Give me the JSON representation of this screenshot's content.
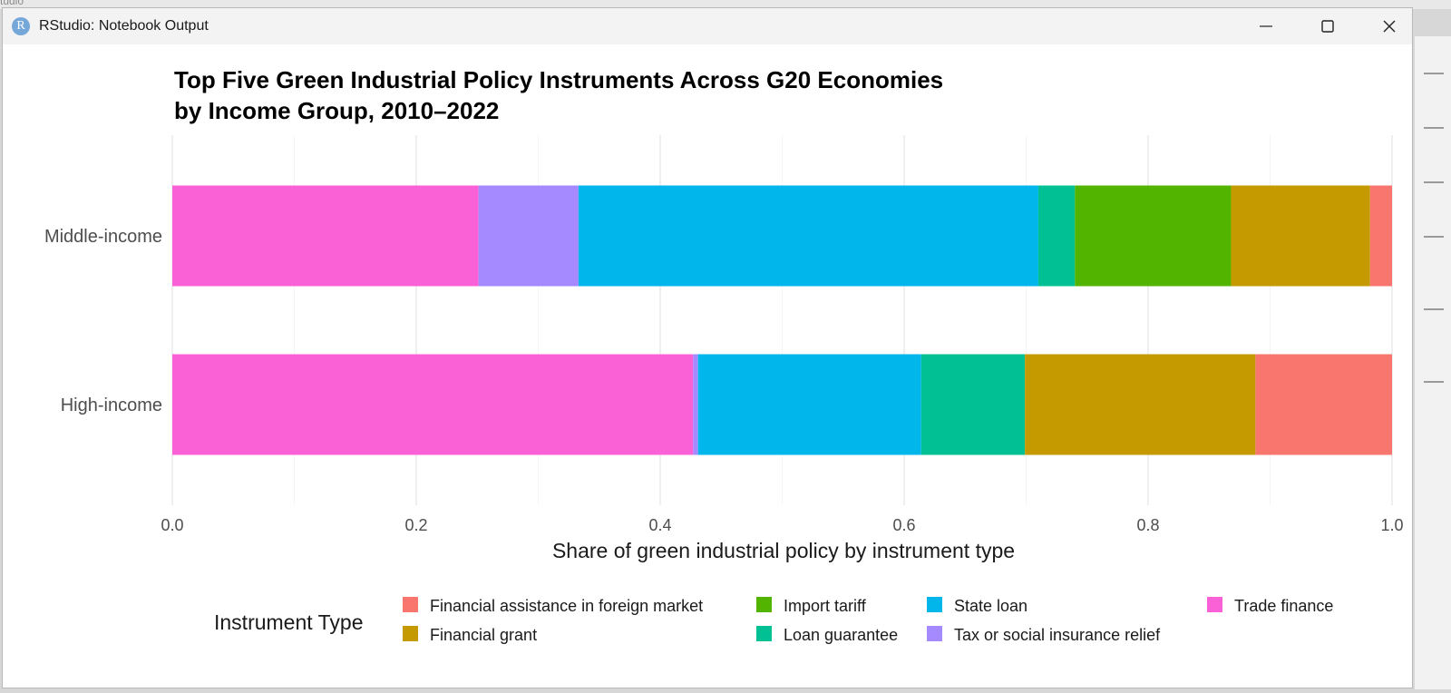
{
  "background": {
    "partial_text": "tudio"
  },
  "window": {
    "title": "RStudio: Notebook Output",
    "app_icon_letter": "R",
    "controls": [
      "minimize-icon",
      "maximize-icon",
      "close-icon"
    ]
  },
  "chart_data": {
    "type": "bar",
    "orientation": "horizontal",
    "stacked": true,
    "title_lines": [
      "Top Five Green Industrial Policy Instruments Across G20 Economies",
      "by Income Group, 2010–2022"
    ],
    "xlabel": "Share of green industrial policy by instrument type",
    "ylabel": "",
    "xlim": [
      0,
      1
    ],
    "x_ticks": [
      "0.0",
      "0.2",
      "0.4",
      "0.6",
      "0.8",
      "1.0"
    ],
    "grid": true,
    "categories": [
      "Middle-income",
      "High-income"
    ],
    "stack_order": [
      "Trade finance",
      "Tax or social insurance relief",
      "State loan",
      "Loan guarantee",
      "Import tariff",
      "Financial grant",
      "Financial assistance in foreign market"
    ],
    "series": [
      {
        "name": "Financial assistance in foreign market",
        "color": "#F8766D",
        "values": [
          0.018,
          0.112
        ]
      },
      {
        "name": "Financial grant",
        "color": "#C49A00",
        "values": [
          0.114,
          0.189
        ]
      },
      {
        "name": "Import tariff",
        "color": "#53B400",
        "values": [
          0.128,
          0.0
        ]
      },
      {
        "name": "Loan guarantee",
        "color": "#00C094",
        "values": [
          0.03,
          0.085
        ]
      },
      {
        "name": "State loan",
        "color": "#00B6EB",
        "values": [
          0.377,
          0.183
        ]
      },
      {
        "name": "Tax or social insurance relief",
        "color": "#A58AFF",
        "values": [
          0.082,
          0.004
        ]
      },
      {
        "name": "Trade finance",
        "color": "#FB61D7",
        "values": [
          0.251,
          0.427
        ]
      }
    ],
    "legend": {
      "title": "Instrument Type",
      "placement": "bottom",
      "columns": [
        [
          "Financial assistance in foreign market",
          "Financial grant"
        ],
        [
          "Import tariff",
          "Loan guarantee"
        ],
        [
          "State loan",
          "Tax or social insurance relief"
        ],
        [
          "Trade finance"
        ]
      ]
    }
  }
}
